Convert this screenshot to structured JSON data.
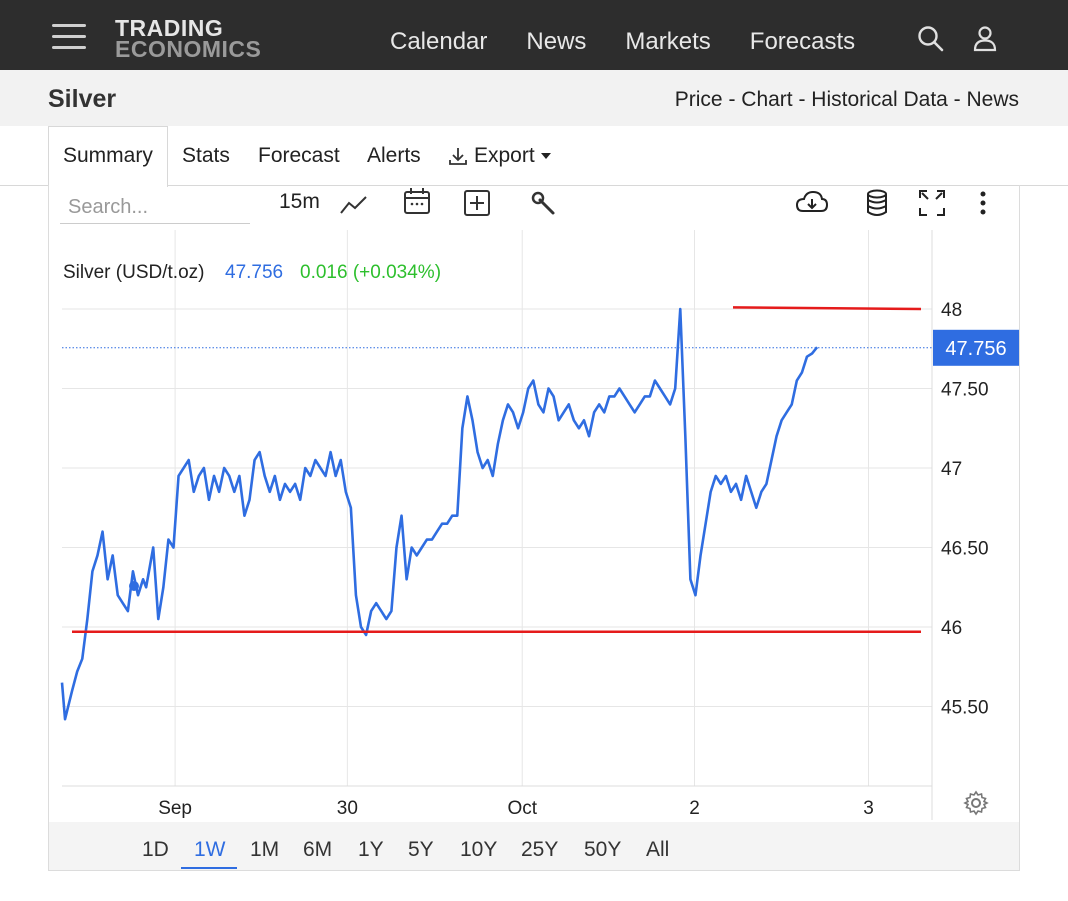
{
  "topnav": {
    "logo_line1": "TRADING",
    "logo_line2": "ECONOMICS",
    "links": [
      "Calendar",
      "News",
      "Markets",
      "Forecasts"
    ],
    "icons": [
      "hamburger-menu-icon",
      "search-icon",
      "user-icon"
    ]
  },
  "subheader": {
    "title": "Silver",
    "crumbs": "Price - Chart - Historical Data - News"
  },
  "tabs": {
    "summary": "Summary",
    "stats": "Stats",
    "forecast": "Forecast",
    "alerts": "Alerts",
    "export": "Export"
  },
  "toolbar": {
    "search_placeholder": "Search...",
    "interval": "15m",
    "icons": [
      "line-chart-icon",
      "calendar-icon",
      "add-indicator-icon",
      "wrench-icon",
      "cloud-download-icon",
      "database-icon",
      "fullscreen-icon",
      "more-vertical-icon"
    ]
  },
  "legend": {
    "name": "Silver (USD/t.oz)",
    "price": "47.756",
    "change": "0.016 (+0.034%)"
  },
  "colors": {
    "line": "#2f6de1",
    "change_positive": "#2dbf2d",
    "trendline": "#e51b1b",
    "price_badge": "#2f6de1"
  },
  "ranges": [
    "1D",
    "1W",
    "1M",
    "6M",
    "1Y",
    "5Y",
    "10Y",
    "25Y",
    "50Y",
    "All"
  ],
  "active_range": "1W",
  "chart_data": {
    "type": "line",
    "title": "Silver (USD/t.oz)",
    "current_price": 47.756,
    "price_label": "47.756",
    "ylim": [
      45.0,
      48.3
    ],
    "yticks": [
      {
        "v": 48,
        "label": "48"
      },
      {
        "v": 47.5,
        "label": "47.50"
      },
      {
        "v": 47,
        "label": "47"
      },
      {
        "v": 46.5,
        "label": "46.50"
      },
      {
        "v": 46,
        "label": "46"
      },
      {
        "v": 45.5,
        "label": "45.50"
      }
    ],
    "xlim": [
      0,
      100
    ],
    "xticks": [
      {
        "t": 13.0,
        "label": "Sep"
      },
      {
        "t": 32.8,
        "label": "30"
      },
      {
        "t": 52.9,
        "label": "Oct"
      },
      {
        "t": 72.7,
        "label": "2"
      },
      {
        "t": 92.7,
        "label": "3"
      }
    ],
    "series": [
      {
        "values": [
          [
            0.0,
            45.65
          ],
          [
            0.3,
            45.42
          ],
          [
            1.0,
            45.6
          ],
          [
            1.5,
            45.72
          ],
          [
            2.0,
            45.8
          ],
          [
            2.5,
            46.05
          ],
          [
            3.0,
            46.35
          ],
          [
            3.5,
            46.45
          ],
          [
            4.0,
            46.6
          ],
          [
            4.5,
            46.3
          ],
          [
            5.0,
            46.45
          ],
          [
            5.5,
            46.2
          ],
          [
            6.0,
            46.15
          ],
          [
            6.5,
            46.1
          ],
          [
            7.0,
            46.35
          ],
          [
            7.5,
            46.2
          ],
          [
            8.0,
            46.3
          ],
          [
            8.3,
            46.25
          ],
          [
            9.0,
            46.5
          ],
          [
            9.5,
            46.05
          ],
          [
            10.0,
            46.25
          ],
          [
            10.5,
            46.55
          ],
          [
            11.0,
            46.5
          ],
          [
            11.5,
            46.95
          ],
          [
            12.0,
            47.0
          ],
          [
            12.5,
            47.05
          ],
          [
            13.0,
            46.85
          ],
          [
            13.5,
            46.95
          ],
          [
            14.0,
            47.0
          ],
          [
            14.5,
            46.8
          ],
          [
            15.0,
            46.95
          ],
          [
            15.5,
            46.85
          ],
          [
            16.0,
            47.0
          ],
          [
            16.5,
            46.95
          ],
          [
            17.0,
            46.85
          ],
          [
            17.5,
            46.95
          ],
          [
            18.0,
            46.7
          ],
          [
            18.5,
            46.8
          ],
          [
            19.0,
            47.05
          ],
          [
            19.5,
            47.1
          ],
          [
            20.0,
            46.95
          ],
          [
            20.5,
            46.85
          ],
          [
            21.0,
            46.95
          ],
          [
            21.5,
            46.8
          ],
          [
            22.0,
            46.9
          ],
          [
            22.5,
            46.85
          ],
          [
            23.0,
            46.9
          ],
          [
            23.5,
            46.8
          ],
          [
            24.0,
            47.0
          ],
          [
            24.5,
            46.95
          ],
          [
            25.0,
            47.05
          ],
          [
            25.5,
            47.0
          ],
          [
            26.0,
            46.95
          ],
          [
            26.5,
            47.1
          ],
          [
            27.0,
            46.95
          ],
          [
            27.5,
            47.05
          ],
          [
            28.0,
            46.85
          ],
          [
            28.5,
            46.75
          ],
          [
            29.0,
            46.2
          ],
          [
            29.5,
            46.0
          ],
          [
            30.0,
            45.95
          ],
          [
            30.5,
            46.1
          ],
          [
            31.0,
            46.15
          ],
          [
            31.5,
            46.1
          ],
          [
            32.0,
            46.05
          ],
          [
            32.5,
            46.1
          ],
          [
            33.0,
            46.5
          ],
          [
            33.5,
            46.7
          ],
          [
            34.0,
            46.3
          ],
          [
            34.5,
            46.5
          ],
          [
            35.0,
            46.45
          ],
          [
            35.5,
            46.5
          ],
          [
            36.0,
            46.55
          ],
          [
            36.5,
            46.55
          ],
          [
            37.0,
            46.6
          ],
          [
            37.5,
            46.65
          ],
          [
            38.0,
            46.65
          ],
          [
            38.5,
            46.7
          ],
          [
            39.0,
            46.7
          ],
          [
            39.5,
            47.25
          ],
          [
            40.0,
            47.45
          ],
          [
            40.5,
            47.3
          ],
          [
            41.0,
            47.1
          ],
          [
            41.5,
            47.0
          ],
          [
            42.0,
            47.05
          ],
          [
            42.5,
            46.95
          ],
          [
            43.0,
            47.15
          ],
          [
            43.5,
            47.3
          ],
          [
            44.0,
            47.4
          ],
          [
            44.5,
            47.35
          ],
          [
            45.0,
            47.25
          ],
          [
            45.5,
            47.35
          ],
          [
            46.0,
            47.5
          ],
          [
            46.5,
            47.55
          ],
          [
            47.0,
            47.4
          ],
          [
            47.5,
            47.35
          ],
          [
            48.0,
            47.5
          ],
          [
            48.5,
            47.45
          ],
          [
            49.0,
            47.3
          ],
          [
            49.5,
            47.35
          ],
          [
            50.0,
            47.4
          ],
          [
            50.5,
            47.3
          ],
          [
            51.0,
            47.25
          ],
          [
            51.5,
            47.3
          ],
          [
            52.0,
            47.2
          ],
          [
            52.5,
            47.35
          ],
          [
            53.0,
            47.4
          ],
          [
            53.5,
            47.35
          ],
          [
            54.0,
            47.45
          ],
          [
            54.5,
            47.45
          ],
          [
            55.0,
            47.5
          ],
          [
            55.5,
            47.45
          ],
          [
            56.0,
            47.4
          ],
          [
            56.5,
            47.35
          ],
          [
            57.0,
            47.4
          ],
          [
            57.5,
            47.45
          ],
          [
            58.0,
            47.45
          ],
          [
            58.5,
            47.55
          ],
          [
            59.0,
            47.5
          ],
          [
            59.5,
            47.45
          ],
          [
            60.0,
            47.4
          ],
          [
            60.5,
            47.5
          ],
          [
            61.0,
            48.0
          ],
          [
            61.5,
            47.2
          ],
          [
            62.0,
            46.3
          ],
          [
            62.5,
            46.2
          ],
          [
            63.0,
            46.45
          ],
          [
            63.5,
            46.65
          ],
          [
            64.0,
            46.85
          ],
          [
            64.5,
            46.95
          ],
          [
            65.0,
            46.9
          ],
          [
            65.5,
            46.95
          ],
          [
            66.0,
            46.85
          ],
          [
            66.5,
            46.9
          ],
          [
            67.0,
            46.8
          ],
          [
            67.5,
            46.95
          ],
          [
            68.0,
            46.85
          ],
          [
            68.5,
            46.75
          ],
          [
            69.0,
            46.85
          ],
          [
            69.5,
            46.9
          ],
          [
            70.0,
            47.05
          ],
          [
            70.5,
            47.2
          ],
          [
            71.0,
            47.3
          ],
          [
            71.5,
            47.35
          ],
          [
            72.0,
            47.4
          ],
          [
            72.5,
            47.55
          ],
          [
            73.0,
            47.6
          ],
          [
            73.5,
            47.7
          ],
          [
            74.0,
            47.72
          ],
          [
            74.5,
            47.76
          ]
        ]
      }
    ],
    "annotations": [
      {
        "type": "horizontal-line",
        "value": 48.01,
        "label": ""
      },
      {
        "type": "horizontal-line",
        "value": 45.97,
        "label": ""
      }
    ]
  }
}
